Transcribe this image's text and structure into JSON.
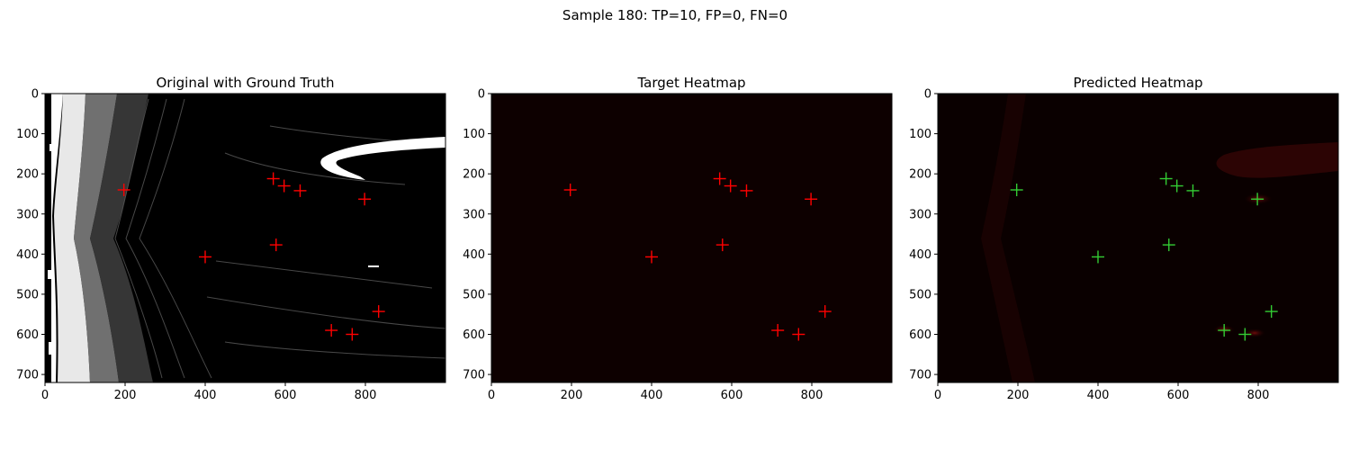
{
  "figure_title": "Sample 180: TP=10, FP=0, FN=0",
  "colors": {
    "ground_truth_marker": "#ff0000",
    "prediction_marker": "#33cc33",
    "heatmap_bg": "#0d0000",
    "original_bg": "#000000",
    "original_feature": "#ffffff"
  },
  "chart_data": [
    {
      "type": "scatter",
      "title": "Original with Ground Truth",
      "background": "grayscale image",
      "xlim": [
        0,
        1000
      ],
      "ylim": [
        720,
        0
      ],
      "xticks": [
        0,
        200,
        400,
        600,
        800
      ],
      "yticks": [
        0,
        100,
        200,
        300,
        400,
        500,
        600,
        700
      ],
      "series": [
        {
          "marker": "+",
          "color": "red",
          "points": [
            [
              197,
              240
            ],
            [
              570,
              212
            ],
            [
              597,
              230
            ],
            [
              637,
              242
            ],
            [
              798,
              263
            ],
            [
              577,
              377
            ],
            [
              400,
              407
            ],
            [
              833,
              543
            ],
            [
              715,
              590
            ],
            [
              767,
              600
            ]
          ]
        }
      ]
    },
    {
      "type": "scatter",
      "title": "Target Heatmap",
      "background": "heatmap",
      "xlim": [
        0,
        1000
      ],
      "ylim": [
        720,
        0
      ],
      "xticks": [
        0,
        200,
        400,
        600,
        800
      ],
      "yticks": [
        0,
        100,
        200,
        300,
        400,
        500,
        600,
        700
      ],
      "series": [
        {
          "marker": "+",
          "color": "red",
          "points": [
            [
              197,
              240
            ],
            [
              570,
              212
            ],
            [
              597,
              230
            ],
            [
              637,
              242
            ],
            [
              798,
              263
            ],
            [
              577,
              377
            ],
            [
              400,
              407
            ],
            [
              833,
              543
            ],
            [
              715,
              590
            ],
            [
              767,
              600
            ]
          ]
        }
      ]
    },
    {
      "type": "scatter",
      "title": "Predicted Heatmap",
      "background": "heatmap",
      "xlim": [
        0,
        1000
      ],
      "ylim": [
        720,
        0
      ],
      "xticks": [
        0,
        200,
        400,
        600,
        800
      ],
      "yticks": [
        0,
        100,
        200,
        300,
        400,
        500,
        600,
        700
      ],
      "series": [
        {
          "marker": "+",
          "color": "green",
          "points": [
            [
              197,
              240
            ],
            [
              570,
              212
            ],
            [
              597,
              230
            ],
            [
              637,
              242
            ],
            [
              798,
              263
            ],
            [
              577,
              377
            ],
            [
              400,
              407
            ],
            [
              833,
              543
            ],
            [
              715,
              590
            ],
            [
              767,
              600
            ]
          ]
        }
      ]
    }
  ]
}
